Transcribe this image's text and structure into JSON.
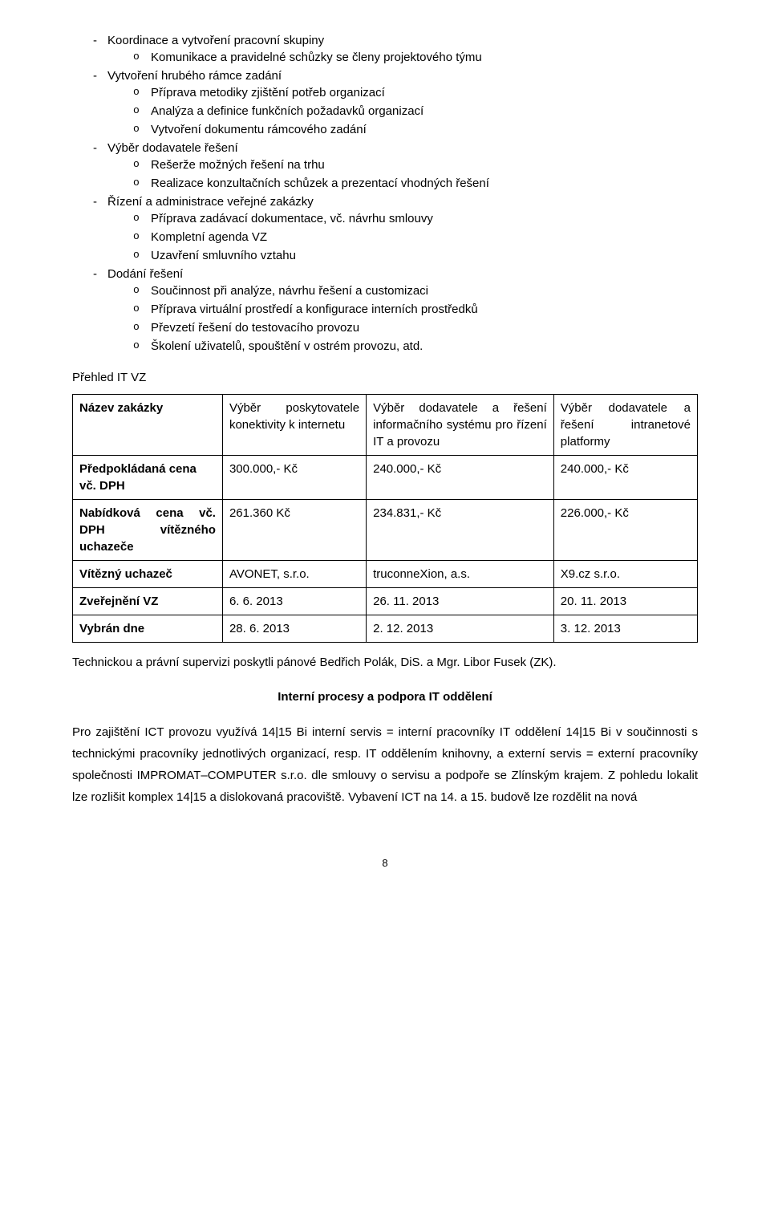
{
  "bullets": {
    "b1": "Koordinace a vytvoření pracovní skupiny",
    "b1_1": "Komunikace a pravidelné schůzky se členy projektového týmu",
    "b2": "Vytvoření hrubého rámce zadání",
    "b2_1": "Příprava metodiky zjištění potřeb organizací",
    "b2_2": "Analýza a definice funkčních požadavků organizací",
    "b2_3": "Vytvoření dokumentu rámcového zadání",
    "b3": "Výběr dodavatele řešení",
    "b3_1": "Rešerže možných řešení na trhu",
    "b3_2": "Realizace konzultačních schůzek a prezentací vhodných řešení",
    "b4": "Řízení a administrace veřejné zakázky",
    "b4_1": "Příprava zadávací dokumentace, vč. návrhu smlouvy",
    "b4_2": "Kompletní agenda VZ",
    "b4_3": "Uzavření smluvního vztahu",
    "b5": "Dodání řešení",
    "b5_1": "Součinnost při analýze, návrhu řešení a customizaci",
    "b5_2": "Příprava virtuální prostředí a konfigurace interních prostředků",
    "b5_3": "Převzetí řešení do testovacího provozu",
    "b5_4": "Školení uživatelů, spouštění v ostrém provozu, atd."
  },
  "table_heading": "Přehled IT VZ",
  "table": {
    "rows": {
      "r0": {
        "c0": "Název zakázky",
        "c1": "Výběr poskytovatele konektivity k internetu",
        "c2": "Výběr dodavatele a řešení informačního systému pro řízení IT a provozu",
        "c3": "Výběr dodavatele a řešení intranetové platformy"
      },
      "r1": {
        "c0": "Předpokládaná cena\nvč. DPH",
        "c1": "300.000,- Kč",
        "c2": "240.000,- Kč",
        "c3": "240.000,- Kč"
      },
      "r2": {
        "c0": "Nabídková cena vč. DPH vítězného uchazeče",
        "c1": "261.360 Kč",
        "c2": "234.831,- Kč",
        "c3": "226.000,- Kč"
      },
      "r3": {
        "c0": "Vítězný uchazeč",
        "c1": "AVONET, s.r.o.",
        "c2": "truconneXion, a.s.",
        "c3": "X9.cz s.r.o."
      },
      "r4": {
        "c0": "Zveřejnění VZ",
        "c1": "6. 6. 2013",
        "c2": "26. 11. 2013",
        "c3": "20. 11. 2013"
      },
      "r5": {
        "c0": "Vybrán dne",
        "c1": "28. 6. 2013",
        "c2": "2. 12. 2013",
        "c3": "3. 12. 2013"
      }
    }
  },
  "supervision": "Technickou a právní supervizi poskytli pánové Bedřich Polák, DiS. a Mgr. Libor Fusek (ZK).",
  "section2_title": "Interní procesy a podpora IT oddělení",
  "section2_body": "Pro zajištění ICT provozu využívá 14|15 Bi interní servis = interní pracovníky IT oddělení 14|15 Bi v součinnosti s technickými pracovníky jednotlivých organizací, resp. IT oddělením knihovny, a externí servis = externí pracovníky společnosti IMPROMAT–COMPUTER s.r.o. dle smlouvy o servisu a podpoře se Zlínským krajem. Z pohledu lokalit lze rozlišit komplex 14|15 a dislokovaná pracoviště. Vybavení ICT na 14. a 15. budově lze rozdělit na nová",
  "page_number": "8"
}
